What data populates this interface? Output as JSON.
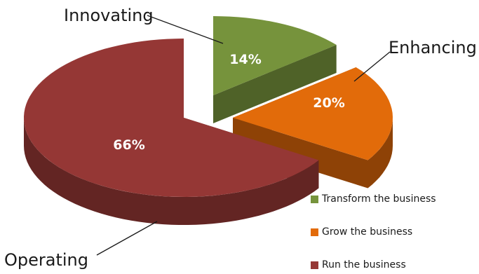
{
  "chart_data": {
    "type": "pie",
    "style": "3d-exploded",
    "slices": [
      {
        "name": "Transform the business",
        "callout": "Innovating",
        "label": "14%",
        "value": 14,
        "color": "#76933c",
        "side_color": "#4f6228"
      },
      {
        "name": "Grow the business",
        "callout": "Enhancing",
        "label": "20%",
        "value": 20,
        "color": "#e26b0a",
        "side_color": "#8e4206"
      },
      {
        "name": "Run the business",
        "callout": "Operating",
        "label": "66%",
        "value": 66,
        "color": "#953735",
        "side_color": "#632523"
      }
    ],
    "legend_position": "bottom-right"
  }
}
